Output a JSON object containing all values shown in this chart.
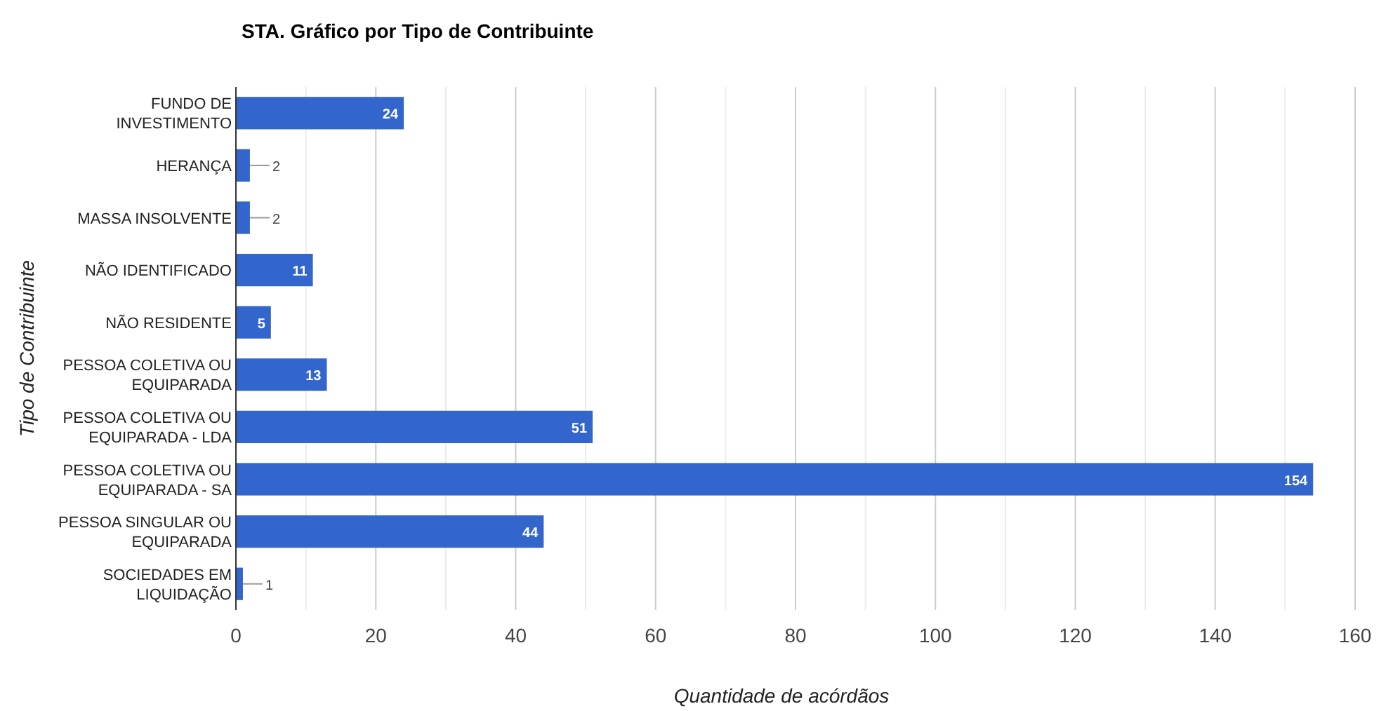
{
  "chart_data": {
    "type": "bar",
    "orientation": "horizontal",
    "title": "STA. Gráfico por Tipo de Contribuinte",
    "xlabel": "Quantidade de acórdãos",
    "ylabel": "Tipo de Contribuinte",
    "categories": [
      "FUNDO DE INVESTIMENTO",
      "HERANÇA",
      "MASSA INSOLVENTE",
      "NÃO IDENTIFICADO",
      "NÃO RESIDENTE",
      "PESSOA COLETIVA OU EQUIPARADA",
      "PESSOA COLETIVA OU EQUIPARADA - LDA",
      "PESSOA COLETIVA OU EQUIPARADA - SA",
      "PESSOA SINGULAR OU EQUIPARADA",
      "SOCIEDADES EM LIQUIDAÇÃO"
    ],
    "values": [
      24,
      2,
      2,
      11,
      5,
      13,
      51,
      154,
      44,
      1
    ],
    "color": "#3366cc",
    "data_labels": true,
    "grid": true,
    "xlim": [
      0,
      160
    ],
    "xticks": [
      0,
      {
        "value": 10,
        "label": null
      },
      20,
      {
        "value": 30,
        "label": null
      },
      40,
      {
        "value": 50,
        "label": null
      },
      60,
      {
        "value": 70,
        "label": null
      },
      80,
      {
        "value": 90,
        "label": null
      },
      100,
      {
        "value": 110,
        "label": null
      },
      120,
      {
        "value": 130,
        "label": null
      },
      140,
      {
        "value": 150,
        "label": null
      },
      160
    ]
  }
}
